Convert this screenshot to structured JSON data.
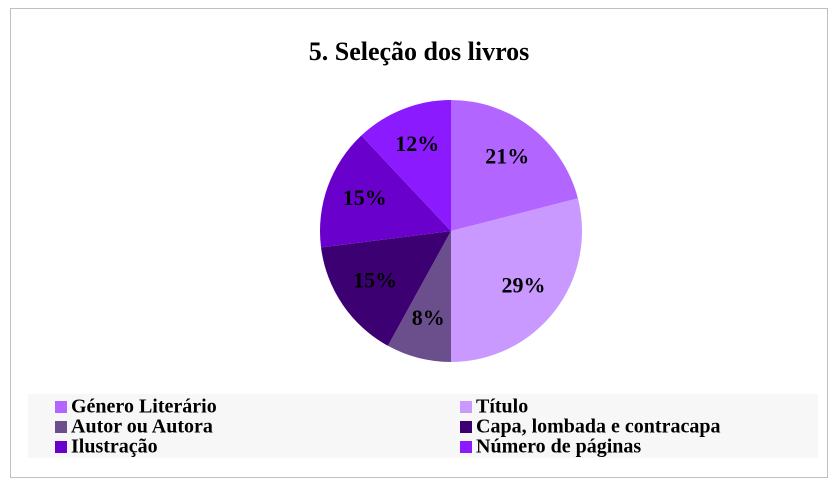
{
  "chart_data": {
    "type": "pie",
    "title": "5. Seleção dos livros",
    "categories": [
      "Género Literário",
      "Título",
      "Autor ou Autora",
      "Capa, lombada e contracapa",
      "Ilustração",
      "Número de páginas"
    ],
    "values": [
      21,
      29,
      8,
      15,
      15,
      12
    ],
    "value_labels": [
      "21%",
      "29%",
      "8%",
      "15%",
      "15%",
      "12%"
    ],
    "colors": [
      "#b266ff",
      "#c999ff",
      "#6b4f8c",
      "#3d0073",
      "#6a00cc",
      "#8c1aff"
    ],
    "legend": "bottom"
  }
}
